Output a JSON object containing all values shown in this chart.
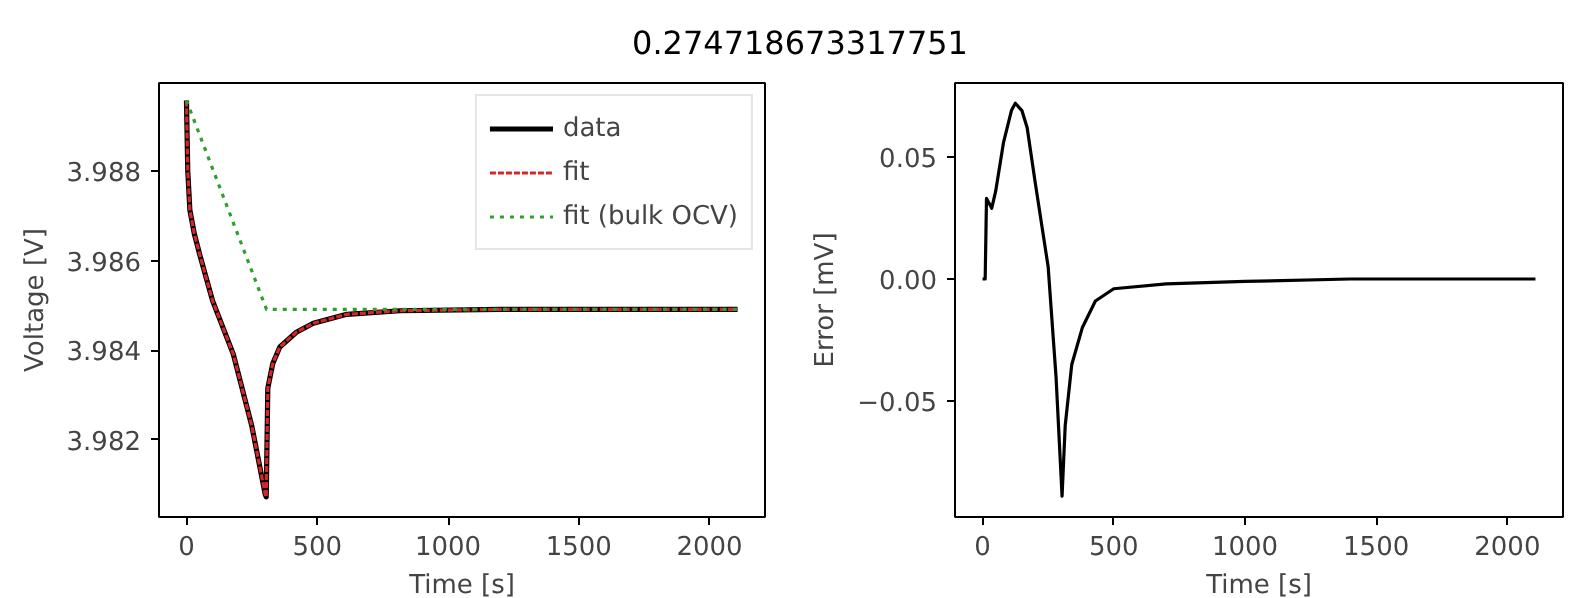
{
  "chart_data": [
    {
      "type": "line",
      "title": "0.274718673317751",
      "xlabel": "Time [s]",
      "ylabel": "Voltage [V]",
      "xlim": [
        -105,
        2212
      ],
      "xticks": [
        0,
        500,
        1000,
        1500,
        2000
      ],
      "ylim": [
        3.98027,
        3.98997
      ],
      "yticks": [
        3.982,
        3.984,
        3.986,
        3.988
      ],
      "grid": false,
      "legend": "top right",
      "x": [
        0,
        5,
        13,
        30,
        51,
        100,
        179,
        250,
        301,
        305,
        311,
        330,
        357,
        420,
        485,
        613,
        817,
        1200,
        2107
      ],
      "series": [
        {
          "name": "data",
          "color": "#000000",
          "line_style": "solid",
          "values": [
            3.98958,
            3.988,
            3.98713,
            3.9866,
            3.98613,
            3.9851,
            3.98391,
            3.9823,
            3.98078,
            3.98072,
            3.98315,
            3.9837,
            3.98407,
            3.9844,
            3.9846,
            3.9848,
            3.98488,
            3.98491,
            3.98491
          ]
        },
        {
          "name": "fit",
          "color": "#d62728",
          "line_style": "dashed",
          "values": [
            3.98958,
            3.988,
            3.98713,
            3.9866,
            3.98613,
            3.9851,
            3.98391,
            3.9823,
            3.98078,
            3.98072,
            3.98315,
            3.9837,
            3.98407,
            3.9844,
            3.9846,
            3.9848,
            3.98488,
            3.98491,
            3.98491
          ]
        },
        {
          "name": "fit (bulk OCV)",
          "color": "#2ca02c",
          "line_style": "dotted",
          "x": [
            0,
            306,
            2107
          ],
          "values": [
            3.98958,
            3.98491,
            3.98491
          ]
        }
      ]
    },
    {
      "type": "line",
      "xlabel": "Time [s]",
      "ylabel": "Error [mV]",
      "xlim": [
        -105,
        2212
      ],
      "xticks": [
        0,
        500,
        1000,
        1500,
        2000
      ],
      "ylim": [
        -0.0975,
        0.0803
      ],
      "yticks": [
        {
          "value": -0.05,
          "label": "−0.05"
        },
        {
          "value": 0.0,
          "label": "0.00"
        },
        {
          "value": 0.05,
          "label": "0.05"
        }
      ],
      "grid": false,
      "legend": false,
      "series": [
        {
          "color": "#000000",
          "line_style": "solid",
          "x": [
            0,
            10,
            15,
            25,
            35,
            50,
            80,
            110,
            125,
            150,
            170,
            200,
            250,
            280,
            303,
            315,
            340,
            380,
            430,
            500,
            700,
            1000,
            1400,
            2107
          ],
          "values": [
            0.0,
            0.0,
            0.033,
            0.031,
            0.029,
            0.036,
            0.056,
            0.069,
            0.072,
            0.069,
            0.062,
            0.04,
            0.005,
            -0.04,
            -0.089,
            -0.06,
            -0.035,
            -0.02,
            -0.009,
            -0.004,
            -0.002,
            -0.001,
            0.0,
            0.0
          ]
        }
      ]
    }
  ]
}
